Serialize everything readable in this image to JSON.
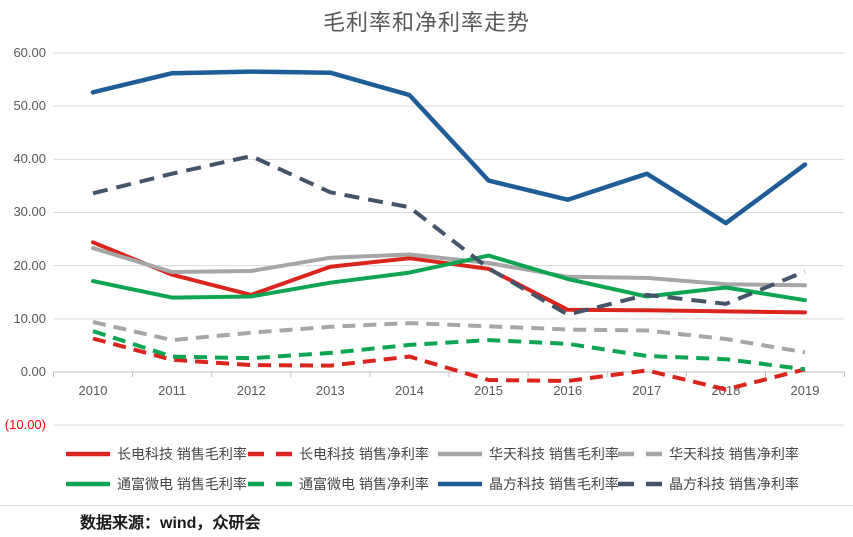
{
  "chart_data": {
    "type": "line",
    "title": "毛利率和净利率走势",
    "x": [
      "2010",
      "2011",
      "2012",
      "2013",
      "2014",
      "2015",
      "2016",
      "2017",
      "2018",
      "2019"
    ],
    "xlabel": "",
    "ylabel": "",
    "ylim": [
      -10,
      60
    ],
    "ytick_step": 10,
    "ytick_labels": [
      "60.00",
      "50.00",
      "40.00",
      "30.00",
      "20.00",
      "10.00",
      "0.00",
      "(10.00)"
    ],
    "grid": true,
    "legend_position": "bottom",
    "series": [
      {
        "name": "长电科技 销售毛利率",
        "color": "#d9251d",
        "dash": false,
        "values": [
          24.4,
          18.3,
          14.5,
          19.8,
          21.4,
          19.4,
          11.7,
          11.6,
          11.4,
          11.2
        ]
      },
      {
        "name": "长电科技 销售净利率",
        "color": "#d9251d",
        "dash": true,
        "values": [
          6.3,
          2.3,
          1.3,
          1.2,
          2.9,
          -1.5,
          -1.7,
          0.3,
          -3.3,
          0.5
        ]
      },
      {
        "name": "华天科技 销售毛利率",
        "color": "#a6a6a6",
        "dash": false,
        "values": [
          23.3,
          18.8,
          19.0,
          21.5,
          22.1,
          20.5,
          17.9,
          17.7,
          16.5,
          16.3
        ]
      },
      {
        "name": "华天科技 销售净利率",
        "color": "#a6a6a6",
        "dash": true,
        "values": [
          9.4,
          6.0,
          7.4,
          8.5,
          9.2,
          8.6,
          8.0,
          7.8,
          6.2,
          3.7
        ]
      },
      {
        "name": "通富微电 销售毛利率",
        "color": "#0ea552",
        "dash": false,
        "values": [
          17.1,
          14.0,
          14.2,
          16.8,
          18.7,
          21.9,
          17.5,
          14.2,
          15.9,
          13.5
        ]
      },
      {
        "name": "通富微电 销售净利率",
        "color": "#0ea552",
        "dash": true,
        "values": [
          7.7,
          2.9,
          2.6,
          3.6,
          5.1,
          6.0,
          5.3,
          3.0,
          2.4,
          0.5
        ]
      },
      {
        "name": "晶方科技 销售毛利率",
        "color": "#1f5d97",
        "dash": false,
        "values": [
          52.6,
          56.2,
          56.5,
          56.3,
          52.1,
          36.0,
          32.4,
          37.3,
          28.0,
          39.0
        ]
      },
      {
        "name": "晶方科技 销售净利率",
        "color": "#44546a",
        "dash": true,
        "values": [
          33.6,
          37.3,
          40.6,
          33.8,
          31.0,
          19.5,
          10.8,
          14.5,
          12.8,
          18.9
        ]
      }
    ]
  },
  "footer": {
    "source_note": "数据来源：wind，众研会"
  },
  "colors": {
    "grid": "#d9d9d9",
    "axis": "#bfbfbf",
    "tick_text": "#595959",
    "negative_tick": "#ff0000",
    "title_text": "#595959",
    "legend_text": "#464646",
    "source_text": "#1a1a1a"
  }
}
